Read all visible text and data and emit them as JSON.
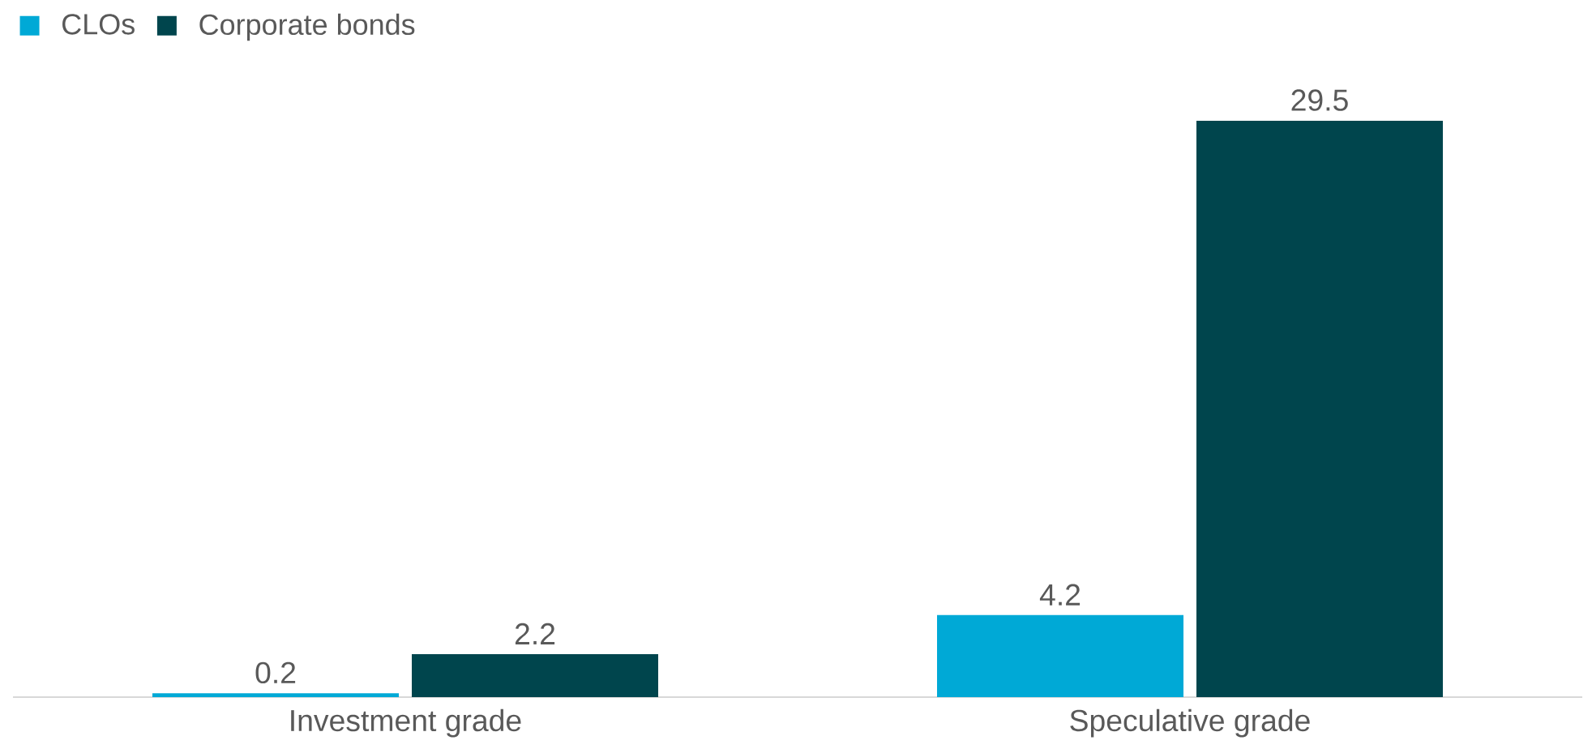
{
  "chart_data": {
    "type": "bar",
    "categories": [
      "Investment grade",
      "Speculative grade"
    ],
    "series": [
      {
        "name": "CLOs",
        "color": "#00a9d6",
        "values": [
          0.2,
          4.2
        ]
      },
      {
        "name": "Corporate bonds",
        "color": "#00454d",
        "values": [
          2.2,
          29.5
        ]
      }
    ],
    "data_labels": true,
    "legend": "top left"
  }
}
